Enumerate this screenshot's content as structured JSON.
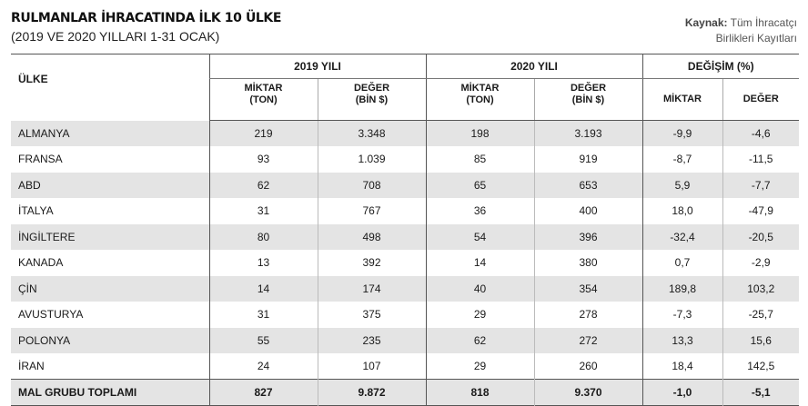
{
  "header": {
    "title": "RULMANLAR İHRACATINDA İLK 10 ÜLKE",
    "subtitle": "(2019 VE 2020 YILLARI 1-31 OCAK)",
    "source_label": "Kaynak:",
    "source_line1": "Tüm İhracatçı",
    "source_line2": "Birlikleri Kayıtları"
  },
  "table": {
    "col_country": "ÜLKE",
    "group_2019": "2019 YILI",
    "group_2020": "2020 YILI",
    "group_change": "DEĞİŞİM (%)",
    "sub_qty_line1": "MİKTAR",
    "sub_qty_line2": "(TON)",
    "sub_val_line1": "DEĞER",
    "sub_val_line2": "(BİN $)",
    "sub_change_qty": "MİKTAR",
    "sub_change_val": "DEĞER",
    "rows": [
      {
        "country": "ALMANYA",
        "q2019": "219",
        "v2019": "3.348",
        "q2020": "198",
        "v2020": "3.193",
        "dq": "-9,9",
        "dv": "-4,6"
      },
      {
        "country": "FRANSA",
        "q2019": "93",
        "v2019": "1.039",
        "q2020": "85",
        "v2020": "919",
        "dq": "-8,7",
        "dv": "-11,5"
      },
      {
        "country": "ABD",
        "q2019": "62",
        "v2019": "708",
        "q2020": "65",
        "v2020": "653",
        "dq": "5,9",
        "dv": "-7,7"
      },
      {
        "country": "İTALYA",
        "q2019": "31",
        "v2019": "767",
        "q2020": "36",
        "v2020": "400",
        "dq": "18,0",
        "dv": "-47,9"
      },
      {
        "country": "İNGİLTERE",
        "q2019": "80",
        "v2019": "498",
        "q2020": "54",
        "v2020": "396",
        "dq": "-32,4",
        "dv": "-20,5"
      },
      {
        "country": "KANADA",
        "q2019": "13",
        "v2019": "392",
        "q2020": "14",
        "v2020": "380",
        "dq": "0,7",
        "dv": "-2,9"
      },
      {
        "country": "ÇİN",
        "q2019": "14",
        "v2019": "174",
        "q2020": "40",
        "v2020": "354",
        "dq": "189,8",
        "dv": "103,2"
      },
      {
        "country": "AVUSTURYA",
        "q2019": "31",
        "v2019": "375",
        "q2020": "29",
        "v2020": "278",
        "dq": "-7,3",
        "dv": "-25,7"
      },
      {
        "country": "POLONYA",
        "q2019": "55",
        "v2019": "235",
        "q2020": "62",
        "v2020": "272",
        "dq": "13,3",
        "dv": "15,6"
      },
      {
        "country": "İRAN",
        "q2019": "24",
        "v2019": "107",
        "q2020": "29",
        "v2020": "260",
        "dq": "18,4",
        "dv": "142,5"
      }
    ],
    "total": {
      "country": "MAL GRUBU TOPLAMI",
      "q2019": "827",
      "v2019": "9.872",
      "q2020": "818",
      "v2020": "9.370",
      "dq": "-1,0",
      "dv": "-5,1"
    }
  }
}
